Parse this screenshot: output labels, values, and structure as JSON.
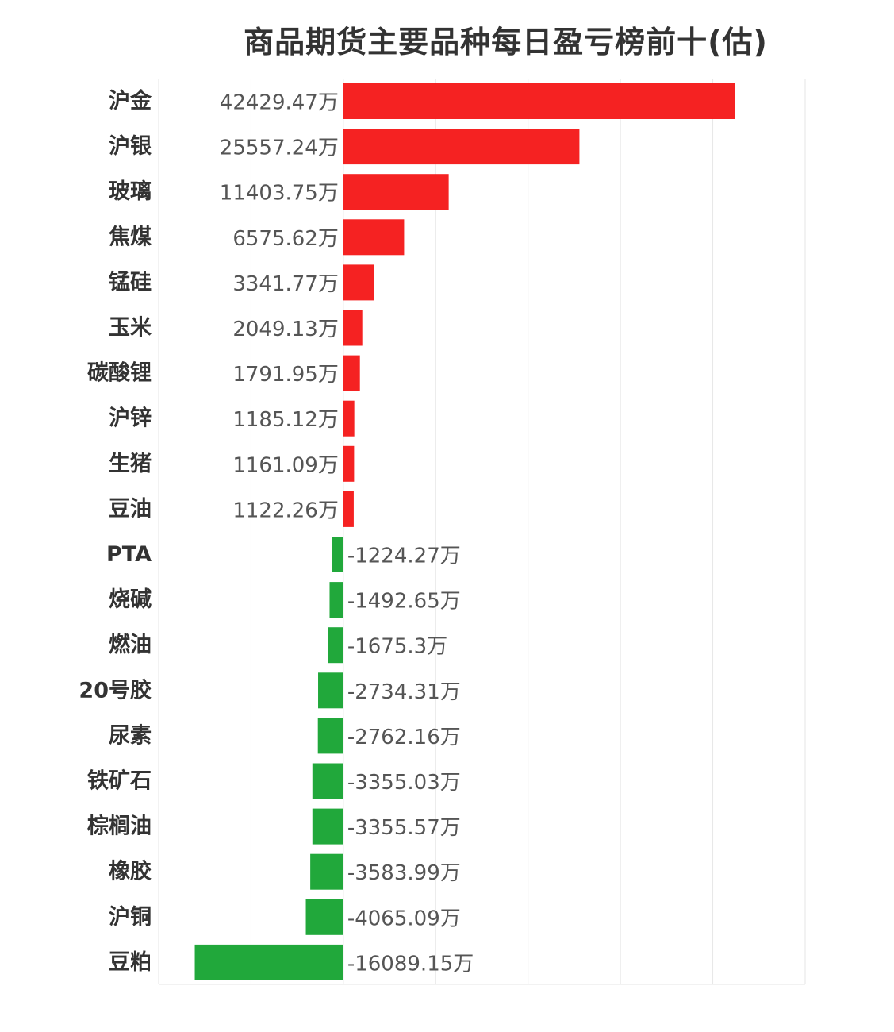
{
  "chart_data": {
    "type": "bar",
    "orientation": "horizontal",
    "title": "商品期货主要品种每日盈亏榜前十(估)",
    "value_suffix": "万",
    "xlim": [
      -20000,
      50000
    ],
    "grid": true,
    "categories": [
      "沪金",
      "沪银",
      "玻璃",
      "焦煤",
      "锰硅",
      "玉米",
      "碳酸锂",
      "沪锌",
      "生猪",
      "豆油",
      "PTA",
      "烧碱",
      "燃油",
      "20号胶",
      "尿素",
      "铁矿石",
      "棕榈油",
      "橡胶",
      "沪铜",
      "豆粕"
    ],
    "values": [
      42429.47,
      25557.24,
      11403.75,
      6575.62,
      3341.77,
      2049.13,
      1791.95,
      1185.12,
      1161.09,
      1122.26,
      -1224.27,
      -1492.65,
      -1675.3,
      -2734.31,
      -2762.16,
      -3355.03,
      -3355.57,
      -3583.99,
      -4065.09,
      -16089.15
    ],
    "value_labels": [
      "42429.47万",
      "25557.24万",
      "11403.75万",
      "6575.62万",
      "3341.77万",
      "2049.13万",
      "1791.95万",
      "1185.12万",
      "1161.09万",
      "1122.26万",
      "-1224.27万",
      "-1492.65万",
      "-1675.3万",
      "-2734.31万",
      "-2762.16万",
      "-3355.03万",
      "-3355.57万",
      "-3583.99万",
      "-4065.09万",
      "-16089.15万"
    ],
    "colors": {
      "positive": "#f52222",
      "negative": "#21a83b",
      "grid": "#e6e6e6"
    }
  }
}
